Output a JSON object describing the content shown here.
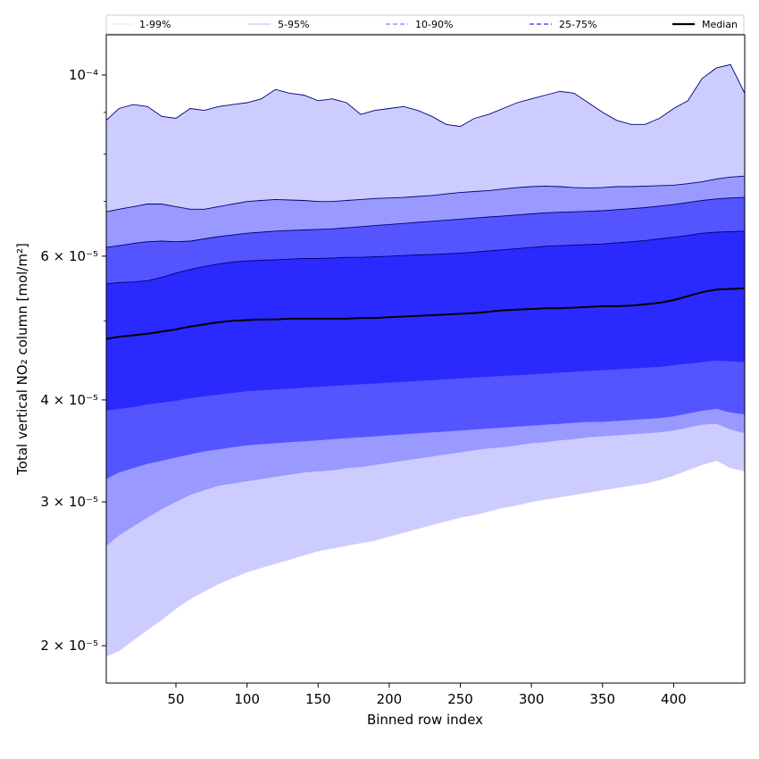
{
  "chart_data": {
    "type": "area",
    "xlabel": "Binned row index",
    "ylabel": "Total vertical NO₂ column [mol/m²]",
    "y_scale": "log",
    "xlim": [
      1,
      450
    ],
    "ylim": [
      1.8e-05,
      0.000112
    ],
    "x_ticks": [
      50,
      100,
      150,
      200,
      250,
      300,
      350,
      400
    ],
    "y_ticks": [
      {
        "value": 2e-05,
        "label": "2 × 10⁻⁵"
      },
      {
        "value": 3e-05,
        "label": "3 × 10⁻⁵"
      },
      {
        "value": 4e-05,
        "label": "4 × 10⁻⁵"
      },
      {
        "value": 6e-05,
        "label": "6 × 10⁻⁵"
      },
      {
        "value": 0.0001,
        "label": "10⁻⁴"
      }
    ],
    "y_minor_ticks": [
      5e-05,
      7e-05,
      8e-05,
      9e-05
    ],
    "legend": {
      "placement": "top",
      "entries": [
        "1-99%",
        "5-95%",
        "10-90%",
        "25-75%",
        "Median"
      ]
    },
    "x": [
      1,
      10,
      20,
      30,
      40,
      50,
      60,
      70,
      80,
      90,
      100,
      110,
      120,
      130,
      140,
      150,
      160,
      170,
      180,
      190,
      200,
      210,
      220,
      230,
      240,
      250,
      260,
      270,
      280,
      290,
      300,
      310,
      320,
      330,
      340,
      350,
      360,
      370,
      380,
      390,
      400,
      410,
      420,
      430,
      440,
      450
    ],
    "series": [
      {
        "name": "1-99%",
        "color": "#ccccff",
        "lower": [
          1.94e-05,
          1.97e-05,
          2.03e-05,
          2.09e-05,
          2.15e-05,
          2.22e-05,
          2.28e-05,
          2.33e-05,
          2.38e-05,
          2.42e-05,
          2.46e-05,
          2.49e-05,
          2.52e-05,
          2.55e-05,
          2.58e-05,
          2.61e-05,
          2.63e-05,
          2.65e-05,
          2.67e-05,
          2.69e-05,
          2.72e-05,
          2.75e-05,
          2.78e-05,
          2.81e-05,
          2.84e-05,
          2.87e-05,
          2.89e-05,
          2.92e-05,
          2.95e-05,
          2.97e-05,
          3e-05,
          3.02e-05,
          3.04e-05,
          3.06e-05,
          3.08e-05,
          3.1e-05,
          3.12e-05,
          3.14e-05,
          3.16e-05,
          3.19e-05,
          3.23e-05,
          3.28e-05,
          3.33e-05,
          3.37e-05,
          3.3e-05,
          3.27e-05
        ],
        "upper": [
          8.8e-05,
          9.1e-05,
          9.2e-05,
          9.15e-05,
          8.9e-05,
          8.85e-05,
          9.1e-05,
          9.05e-05,
          9.15e-05,
          9.2e-05,
          9.25e-05,
          9.35e-05,
          9.6e-05,
          9.5e-05,
          9.45e-05,
          9.3e-05,
          9.35e-05,
          9.25e-05,
          8.95e-05,
          9.05e-05,
          9.1e-05,
          9.15e-05,
          9.05e-05,
          8.9e-05,
          8.7e-05,
          8.65e-05,
          8.85e-05,
          8.95e-05,
          9.1e-05,
          9.25e-05,
          9.35e-05,
          9.45e-05,
          9.55e-05,
          9.5e-05,
          9.25e-05,
          9e-05,
          8.8e-05,
          8.7e-05,
          8.7e-05,
          8.85e-05,
          9.1e-05,
          9.3e-05,
          9.9e-05,
          0.000102,
          0.000103,
          9.5e-05
        ]
      },
      {
        "name": "5-95%",
        "color": "#9999ff",
        "lower": [
          2.65e-05,
          2.73e-05,
          2.8e-05,
          2.87e-05,
          2.94e-05,
          3e-05,
          3.06e-05,
          3.1e-05,
          3.14e-05,
          3.16e-05,
          3.18e-05,
          3.2e-05,
          3.22e-05,
          3.24e-05,
          3.26e-05,
          3.27e-05,
          3.28e-05,
          3.3e-05,
          3.31e-05,
          3.33e-05,
          3.35e-05,
          3.37e-05,
          3.39e-05,
          3.41e-05,
          3.43e-05,
          3.45e-05,
          3.47e-05,
          3.49e-05,
          3.5e-05,
          3.52e-05,
          3.54e-05,
          3.55e-05,
          3.57e-05,
          3.58e-05,
          3.6e-05,
          3.61e-05,
          3.62e-05,
          3.63e-05,
          3.64e-05,
          3.65e-05,
          3.67e-05,
          3.7e-05,
          3.73e-05,
          3.74e-05,
          3.68e-05,
          3.64e-05
        ],
        "upper": [
          6.8e-05,
          6.85e-05,
          6.9e-05,
          6.95e-05,
          6.95e-05,
          6.9e-05,
          6.85e-05,
          6.85e-05,
          6.9e-05,
          6.95e-05,
          7e-05,
          7.02e-05,
          7.04e-05,
          7.03e-05,
          7.02e-05,
          7e-05,
          7e-05,
          7.02e-05,
          7.04e-05,
          7.06e-05,
          7.07e-05,
          7.08e-05,
          7.1e-05,
          7.12e-05,
          7.15e-05,
          7.18e-05,
          7.2e-05,
          7.22e-05,
          7.25e-05,
          7.28e-05,
          7.3e-05,
          7.31e-05,
          7.3e-05,
          7.28e-05,
          7.27e-05,
          7.28e-05,
          7.3e-05,
          7.3e-05,
          7.31e-05,
          7.32e-05,
          7.33e-05,
          7.36e-05,
          7.4e-05,
          7.46e-05,
          7.5e-05,
          7.52e-05
        ]
      },
      {
        "name": "10-90%",
        "color": "#5555ff",
        "lower": [
          3.2e-05,
          3.26e-05,
          3.3e-05,
          3.34e-05,
          3.37e-05,
          3.4e-05,
          3.43e-05,
          3.46e-05,
          3.48e-05,
          3.5e-05,
          3.52e-05,
          3.53e-05,
          3.54e-05,
          3.55e-05,
          3.56e-05,
          3.57e-05,
          3.58e-05,
          3.59e-05,
          3.6e-05,
          3.61e-05,
          3.62e-05,
          3.63e-05,
          3.64e-05,
          3.65e-05,
          3.66e-05,
          3.67e-05,
          3.68e-05,
          3.69e-05,
          3.7e-05,
          3.71e-05,
          3.72e-05,
          3.73e-05,
          3.74e-05,
          3.75e-05,
          3.76e-05,
          3.76e-05,
          3.77e-05,
          3.78e-05,
          3.79e-05,
          3.8e-05,
          3.82e-05,
          3.85e-05,
          3.88e-05,
          3.9e-05,
          3.86e-05,
          3.84e-05
        ],
        "upper": [
          6.15e-05,
          6.18e-05,
          6.22e-05,
          6.25e-05,
          6.26e-05,
          6.25e-05,
          6.26e-05,
          6.3e-05,
          6.34e-05,
          6.37e-05,
          6.4e-05,
          6.42e-05,
          6.44e-05,
          6.45e-05,
          6.46e-05,
          6.47e-05,
          6.48e-05,
          6.5e-05,
          6.52e-05,
          6.54e-05,
          6.56e-05,
          6.58e-05,
          6.6e-05,
          6.62e-05,
          6.64e-05,
          6.66e-05,
          6.68e-05,
          6.7e-05,
          6.72e-05,
          6.74e-05,
          6.76e-05,
          6.78e-05,
          6.79e-05,
          6.8e-05,
          6.81e-05,
          6.82e-05,
          6.84e-05,
          6.86e-05,
          6.88e-05,
          6.91e-05,
          6.94e-05,
          6.98e-05,
          7.02e-05,
          7.05e-05,
          7.07e-05,
          7.08e-05
        ]
      },
      {
        "name": "25-75%",
        "color": "#2a2aff",
        "lower": [
          3.88e-05,
          3.9e-05,
          3.92e-05,
          3.95e-05,
          3.97e-05,
          3.99e-05,
          4.02e-05,
          4.04e-05,
          4.06e-05,
          4.08e-05,
          4.1e-05,
          4.11e-05,
          4.12e-05,
          4.13e-05,
          4.14e-05,
          4.15e-05,
          4.16e-05,
          4.17e-05,
          4.18e-05,
          4.19e-05,
          4.2e-05,
          4.21e-05,
          4.22e-05,
          4.23e-05,
          4.24e-05,
          4.25e-05,
          4.26e-05,
          4.27e-05,
          4.28e-05,
          4.29e-05,
          4.3e-05,
          4.31e-05,
          4.32e-05,
          4.33e-05,
          4.34e-05,
          4.35e-05,
          4.36e-05,
          4.37e-05,
          4.38e-05,
          4.39e-05,
          4.41e-05,
          4.43e-05,
          4.45e-05,
          4.47e-05,
          4.46e-05,
          4.45e-05
        ],
        "upper": [
          5.55e-05,
          5.57e-05,
          5.58e-05,
          5.6e-05,
          5.65e-05,
          5.72e-05,
          5.78e-05,
          5.83e-05,
          5.87e-05,
          5.9e-05,
          5.92e-05,
          5.93e-05,
          5.94e-05,
          5.95e-05,
          5.96e-05,
          5.96e-05,
          5.97e-05,
          5.98e-05,
          5.98e-05,
          5.99e-05,
          6e-05,
          6.01e-05,
          6.02e-05,
          6.03e-05,
          6.04e-05,
          6.05e-05,
          6.07e-05,
          6.09e-05,
          6.11e-05,
          6.13e-05,
          6.15e-05,
          6.17e-05,
          6.18e-05,
          6.19e-05,
          6.2e-05,
          6.21e-05,
          6.23e-05,
          6.25e-05,
          6.27e-05,
          6.3e-05,
          6.33e-05,
          6.36e-05,
          6.4e-05,
          6.42e-05,
          6.43e-05,
          6.44e-05
        ]
      },
      {
        "name": "Median",
        "color": "#000000",
        "values": [
          4.75e-05,
          4.78e-05,
          4.8e-05,
          4.82e-05,
          4.85e-05,
          4.88e-05,
          4.92e-05,
          4.95e-05,
          4.98e-05,
          5e-05,
          5.01e-05,
          5.02e-05,
          5.02e-05,
          5.03e-05,
          5.03e-05,
          5.03e-05,
          5.03e-05,
          5.03e-05,
          5.04e-05,
          5.04e-05,
          5.05e-05,
          5.06e-05,
          5.07e-05,
          5.08e-05,
          5.09e-05,
          5.1e-05,
          5.11e-05,
          5.13e-05,
          5.15e-05,
          5.16e-05,
          5.17e-05,
          5.18e-05,
          5.18e-05,
          5.19e-05,
          5.2e-05,
          5.21e-05,
          5.21e-05,
          5.22e-05,
          5.24e-05,
          5.26e-05,
          5.3e-05,
          5.36e-05,
          5.42e-05,
          5.46e-05,
          5.47e-05,
          5.48e-05
        ]
      }
    ]
  }
}
